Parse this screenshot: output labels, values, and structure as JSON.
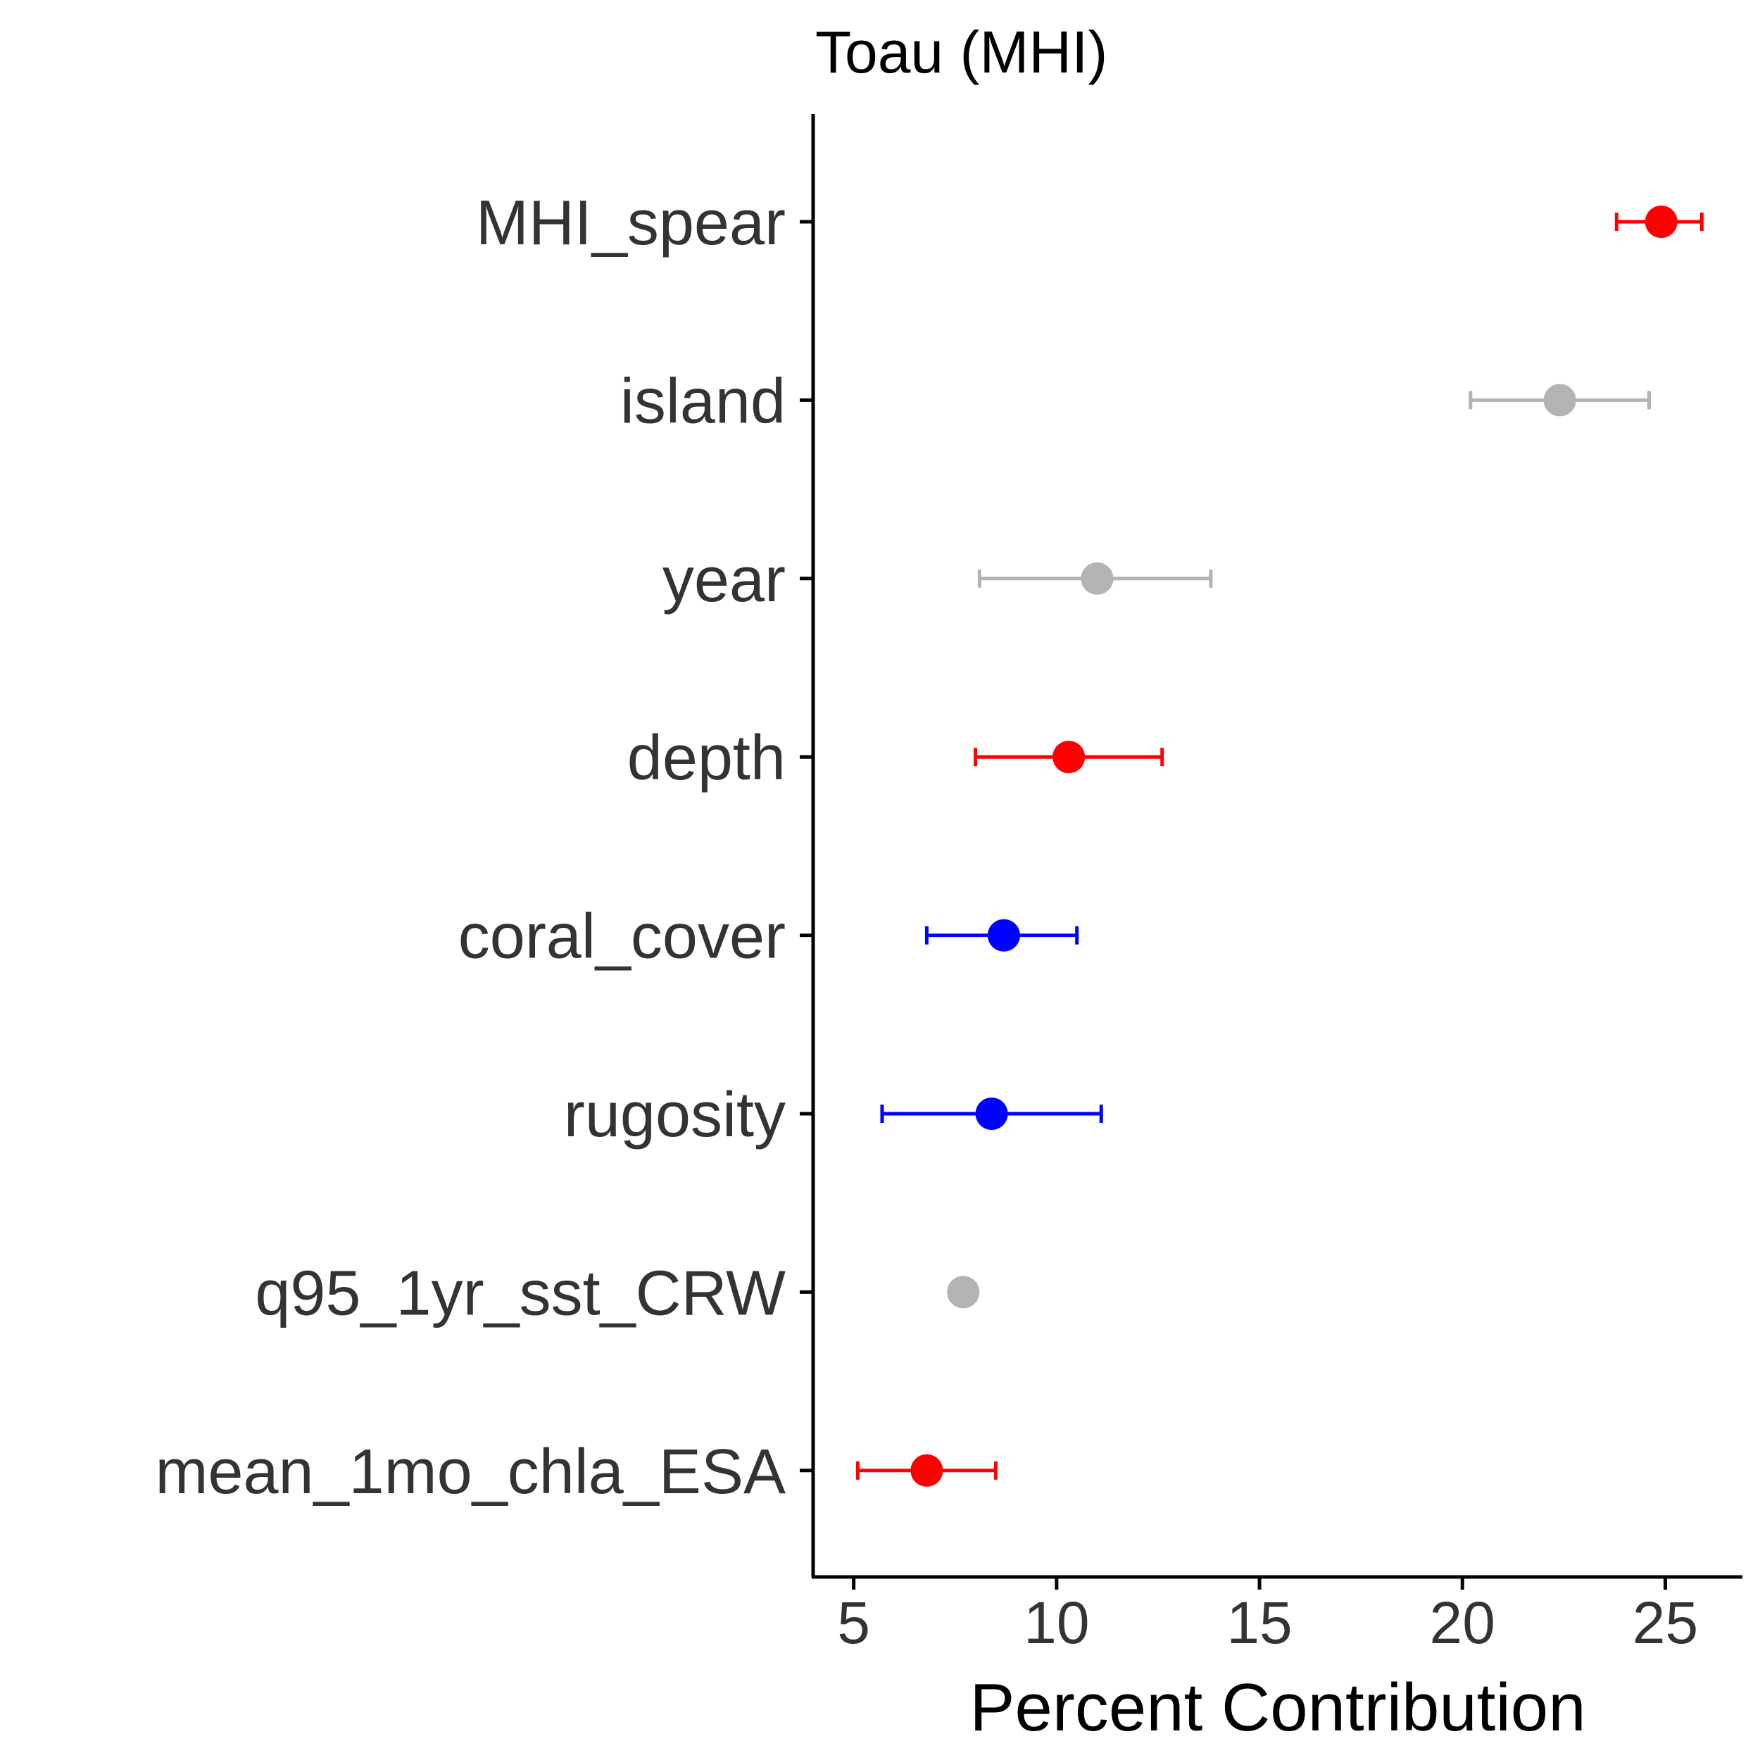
{
  "chart_data": {
    "type": "scatter",
    "title": "Toau (MHI)",
    "xlabel": "Percent Contribution",
    "ylabel": "",
    "xlim": [
      4.0,
      26.9
    ],
    "xticks": [
      5,
      10,
      15,
      20,
      25
    ],
    "grid": false,
    "legend": "none",
    "categories": [
      "MHI_spear",
      "island",
      "year",
      "depth",
      "coral_cover",
      "rugosity",
      "q95_1yr_sst_CRW",
      "mean_1mo_chla_ESA"
    ],
    "points": [
      {
        "label": "MHI_spear",
        "value": 24.9,
        "lower": 23.8,
        "upper": 25.9,
        "color": "#ff0000"
      },
      {
        "label": "island",
        "value": 22.4,
        "lower": 20.2,
        "upper": 24.6,
        "color": "#b3b3b3"
      },
      {
        "label": "year",
        "value": 11.0,
        "lower": 8.1,
        "upper": 13.8,
        "color": "#b3b3b3"
      },
      {
        "label": "depth",
        "value": 10.3,
        "lower": 8.0,
        "upper": 12.6,
        "color": "#ff0000"
      },
      {
        "label": "coral_cover",
        "value": 8.7,
        "lower": 6.8,
        "upper": 10.5,
        "color": "#0000ff"
      },
      {
        "label": "rugosity",
        "value": 8.4,
        "lower": 5.7,
        "upper": 11.1,
        "color": "#0000ff"
      },
      {
        "label": "q95_1yr_sst_CRW",
        "value": 7.7,
        "lower": null,
        "upper": null,
        "color": "#b3b3b3"
      },
      {
        "label": "mean_1mo_chla_ESA",
        "value": 6.8,
        "lower": 5.1,
        "upper": 8.5,
        "color": "#ff0000"
      }
    ]
  }
}
